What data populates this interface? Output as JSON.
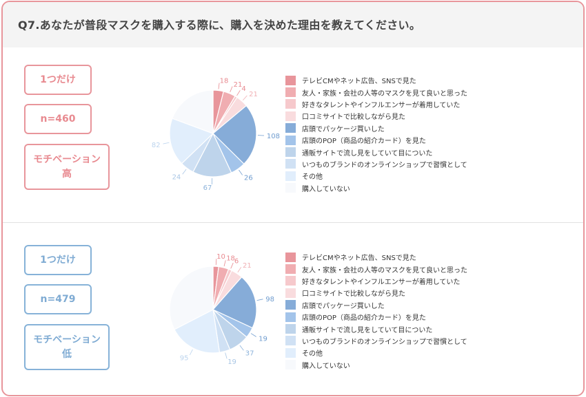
{
  "title": "Q7.あなたが普段マスクを購入する際に、購入を決めた理由を教えてください。",
  "colors": [
    "#e8959b",
    "#f0adb1",
    "#f6c9cc",
    "#f9dcde",
    "#86acd8",
    "#a3c4ea",
    "#bed4eb",
    "#d0e1f4",
    "#e1eefc",
    "#f7f9fc"
  ],
  "sections": [
    {
      "badge_single": "1つだけ",
      "badge_n": "n=460",
      "badge_motivation": "モチベーション\n高",
      "legend": [
        "テレビCMやネット広告、SNSで見た",
        "友人・家族・会社の人等のマスクを見て良いと思った",
        "好きなタレントやインフルエンサーが着用していた",
        "口コミサイトで比較しながら見た",
        "店頭でパッケージ買いした",
        "店頭のPOP（商品の紹介カード）を見た",
        "通販サイトで流し見をしていて目についた",
        "いつものブランドのオンラインショップで習慣として",
        "その他",
        "購入していない"
      ],
      "chart_data": {
        "type": "pie",
        "n": 460,
        "categories": [
          "テレビCMやネット広告、SNSで見た",
          "友人・家族・会社の人等のマスクを見て良いと思った",
          "好きなタレントやインフルエンサーが着用していた",
          "口コミサイトで比較しながら見た",
          "店頭でパッケージ買いした",
          "店頭のPOP（商品の紹介カード）を見た",
          "通販サイトで流し見をしていて目についた",
          "いつものブランドのオンラインショップで習慣として",
          "その他",
          "購入していない"
        ],
        "values": [
          18,
          21,
          4,
          21,
          108,
          26,
          67,
          24,
          82,
          89
        ],
        "labels": [
          "18",
          "21",
          "4",
          "21",
          "108",
          "26",
          "67",
          "24",
          "82",
          ""
        ]
      }
    },
    {
      "badge_single": "1つだけ",
      "badge_n": "n=479",
      "badge_motivation": "モチベーション\n低",
      "legend": [
        "テレビCMやネット広告、SNSで見た",
        "友人・家族・会社の人等のマスクを見て良いと思った",
        "好きなタレントやインフルエンサーが着用していた",
        "口コミサイトで比較しながら見た",
        "店頭でパッケージ買いした",
        "店頭のPOP（商品の紹介カード）を見た",
        "通販サイトで流し見をしていて目についた",
        "いつものブランドのオンラインショップで習慣として",
        "その他",
        "購入していない"
      ],
      "chart_data": {
        "type": "pie",
        "n": 479,
        "categories": [
          "テレビCMやネット広告、SNSで見た",
          "友人・家族・会社の人等のマスクを見て良いと思った",
          "好きなタレントやインフルエンサーが着用していた",
          "口コミサイトで比較しながら見た",
          "店頭でパッケージ買いした",
          "店頭のPOP（商品の紹介カード）を見た",
          "通販サイトで流し見をしていて目についた",
          "いつものブランドのオンラインショップで習慣として",
          "その他",
          "購入していない"
        ],
        "values": [
          10,
          18,
          6,
          21,
          98,
          19,
          37,
          19,
          95,
          156
        ],
        "labels": [
          "10",
          "18",
          "6",
          "21",
          "98",
          "19",
          "37",
          "19",
          "95",
          ""
        ]
      }
    }
  ]
}
